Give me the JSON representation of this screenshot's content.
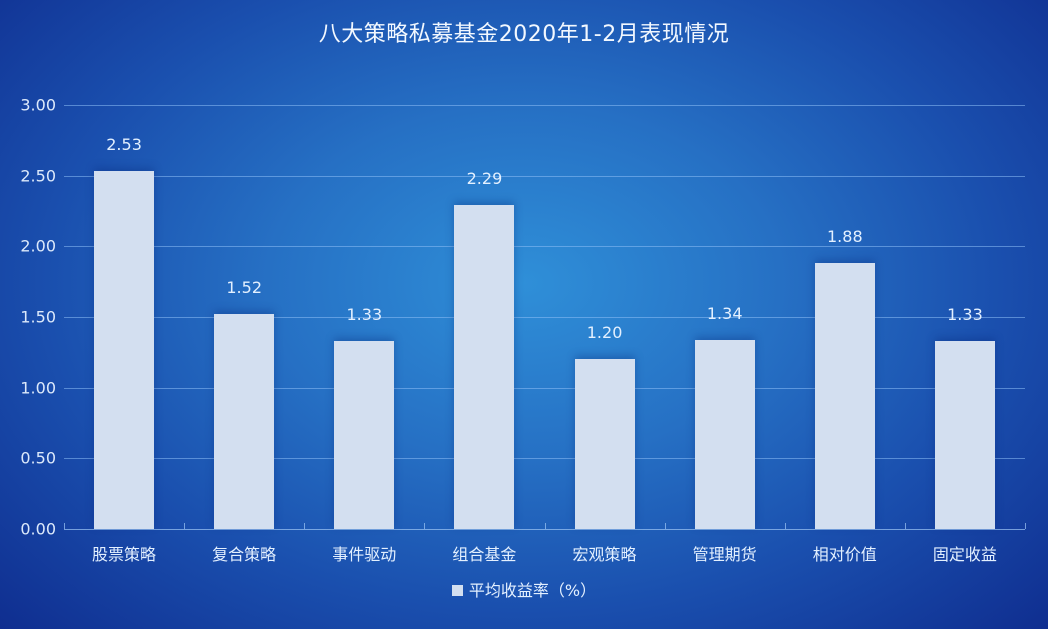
{
  "title": "八大策略私募基金2020年1-2月表现情况",
  "legend": {
    "label": "平均收益率（%）",
    "swatch_color": "#d3dff0"
  },
  "y_ticks": [
    "0.00",
    "0.50",
    "1.00",
    "1.50",
    "2.00",
    "2.50",
    "3.00"
  ],
  "colors": {
    "bar": "#d3dff0",
    "background_center": "#2f8fd8",
    "background_edge": "#0f2d8f",
    "grid": "#8cbef5"
  },
  "chart_data": {
    "type": "bar",
    "title": "八大策略私募基金2020年1-2月表现情况",
    "categories": [
      "股票策略",
      "复合策略",
      "事件驱动",
      "组合基金",
      "宏观策略",
      "管理期货",
      "相对价值",
      "固定收益"
    ],
    "series": [
      {
        "name": "平均收益率（%）",
        "values": [
          2.53,
          1.52,
          1.33,
          2.29,
          1.2,
          1.34,
          1.88,
          1.33
        ]
      }
    ],
    "value_labels": [
      "2.53",
      "1.52",
      "1.33",
      "2.29",
      "1.20",
      "1.34",
      "1.88",
      "1.33"
    ],
    "xlabel": "",
    "ylabel": "",
    "ylim": [
      0,
      3.0
    ],
    "y_tick_step": 0.5,
    "grid": true,
    "legend_position": "bottom"
  }
}
